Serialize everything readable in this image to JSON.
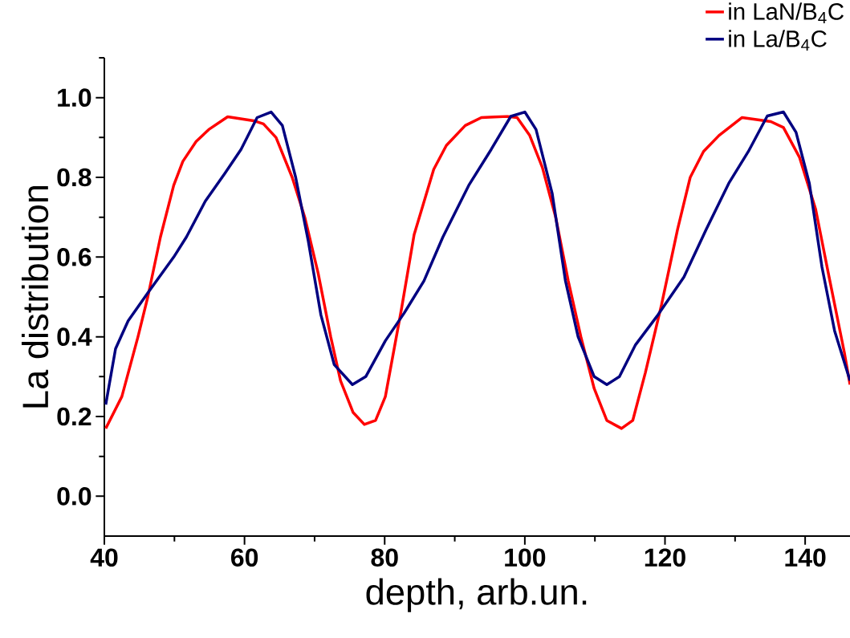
{
  "chart_data": {
    "type": "line",
    "xlabel": "depth, arb.un.",
    "ylabel": "La distribution",
    "xlim": [
      40,
      146.4
    ],
    "ylim": [
      -0.1,
      1.1
    ],
    "xticks": [
      40,
      {
        "value": 50,
        "label": null
      },
      60,
      {
        "value": 70,
        "label": null
      },
      80,
      {
        "value": 90,
        "label": null
      },
      100,
      {
        "value": 110,
        "label": null
      },
      120,
      {
        "value": 130,
        "label": null
      },
      140
    ],
    "yticks": [
      {
        "value": 0,
        "label": "0.0"
      },
      {
        "value": 0.1,
        "label": null
      },
      {
        "value": 0.2,
        "label": "0.2"
      },
      {
        "value": 0.3,
        "label": null
      },
      {
        "value": 0.4,
        "label": "0.4"
      },
      {
        "value": 0.5,
        "label": null
      },
      {
        "value": 0.6,
        "label": "0.6"
      },
      {
        "value": 0.7,
        "label": null
      },
      {
        "value": 0.8,
        "label": "0.8"
      },
      {
        "value": 0.9,
        "label": null
      },
      {
        "value": 1.0,
        "label": "1.0"
      },
      {
        "value": 1.1,
        "label": null
      }
    ],
    "legend": "top right",
    "line_style": "solid",
    "marker": "none",
    "series": [
      {
        "name": "in LaN/B$_{4}$C",
        "color": "#ff0000",
        "x": [
          40.2,
          42.5,
          44.8,
          46.2,
          48,
          49.9,
          51.2,
          53.1,
          54.9,
          57.6,
          61.3,
          62.7,
          64.5,
          66.8,
          68.6,
          70.5,
          72.3,
          73.7,
          75.5,
          77.1,
          78.7,
          80.1,
          82.4,
          84.2,
          87,
          88.8,
          91.5,
          93.8,
          97.5,
          98.9,
          100.7,
          102.5,
          104.4,
          106.2,
          108,
          109.9,
          111.7,
          113.8,
          115.4,
          117.2,
          119.5,
          121.8,
          123.6,
          125.5,
          127.7,
          131,
          135.1,
          136.9,
          139.2,
          141.5,
          143.3,
          145.6,
          146.4
        ],
        "values": [
          0.17,
          0.25,
          0.4,
          0.5,
          0.65,
          0.78,
          0.84,
          0.89,
          0.92,
          0.952,
          0.942,
          0.934,
          0.9,
          0.8,
          0.7,
          0.56,
          0.4,
          0.29,
          0.21,
          0.18,
          0.19,
          0.25,
          0.47,
          0.656,
          0.82,
          0.88,
          0.93,
          0.95,
          0.953,
          0.95,
          0.905,
          0.825,
          0.7,
          0.54,
          0.4,
          0.27,
          0.19,
          0.17,
          0.19,
          0.31,
          0.48,
          0.67,
          0.8,
          0.865,
          0.905,
          0.95,
          0.94,
          0.925,
          0.85,
          0.72,
          0.56,
          0.36,
          0.28
        ]
      },
      {
        "name": "in La/B$_{4}$C",
        "color": "#000080",
        "x": [
          40.2,
          41.6,
          43.4,
          46.2,
          49.9,
          51.7,
          54.4,
          57.2,
          59.5,
          61.8,
          63.8,
          65.4,
          67.3,
          69.1,
          70.9,
          72.8,
          75.4,
          77.3,
          80.1,
          82.8,
          85.6,
          88.3,
          92,
          95.2,
          98,
          100,
          101.6,
          103.9,
          105.8,
          107.6,
          109.9,
          111.7,
          113.5,
          115.8,
          119,
          122.7,
          125.9,
          129.1,
          131.9,
          134.6,
          136.9,
          138.7,
          140.6,
          142.4,
          144.2,
          146.4
        ],
        "values": [
          0.23,
          0.37,
          0.44,
          0.51,
          0.6,
          0.65,
          0.74,
          0.81,
          0.87,
          0.95,
          0.964,
          0.93,
          0.8,
          0.64,
          0.455,
          0.33,
          0.28,
          0.3,
          0.39,
          0.46,
          0.54,
          0.65,
          0.78,
          0.87,
          0.953,
          0.964,
          0.92,
          0.76,
          0.54,
          0.4,
          0.3,
          0.28,
          0.3,
          0.38,
          0.455,
          0.55,
          0.67,
          0.785,
          0.865,
          0.954,
          0.964,
          0.913,
          0.785,
          0.575,
          0.415,
          0.29
        ]
      }
    ]
  }
}
